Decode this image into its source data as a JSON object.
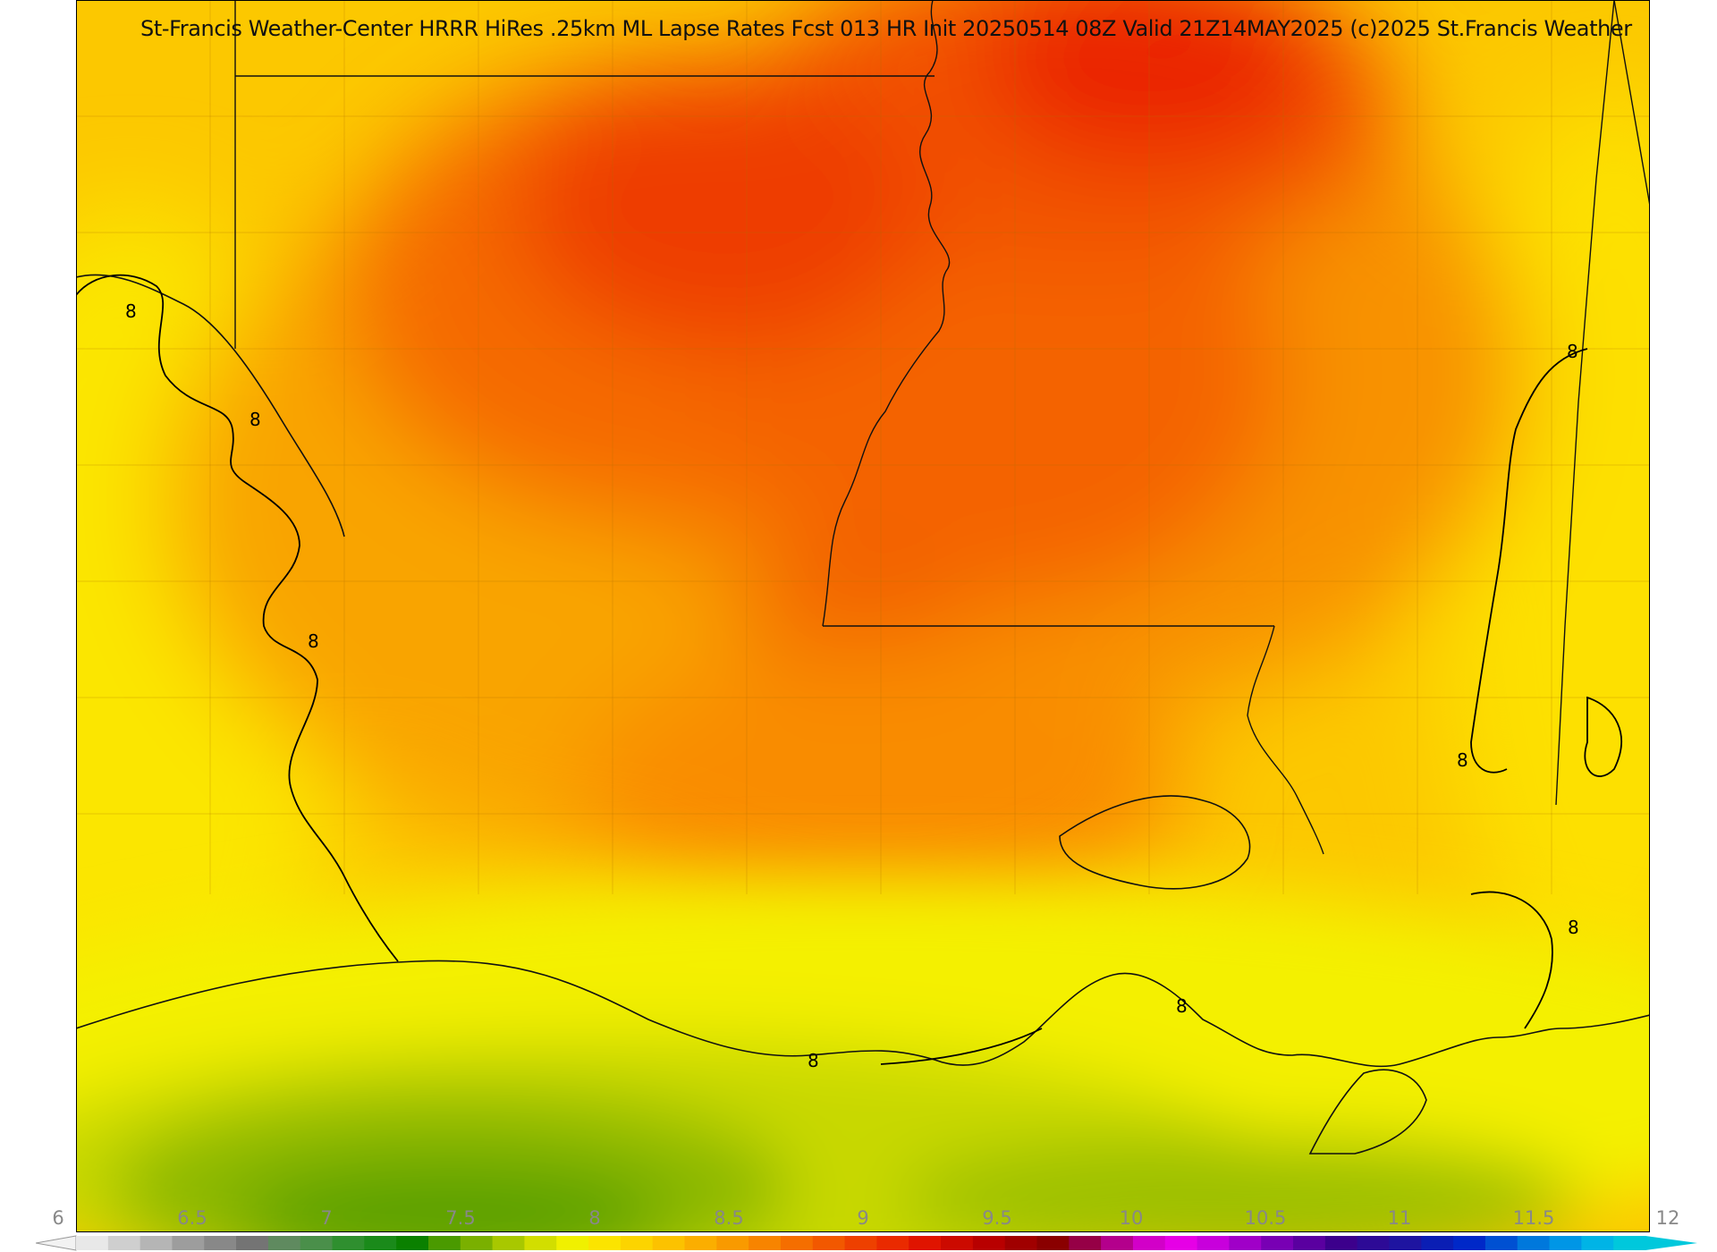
{
  "title": "St-Francis Weather-Center HRRR HiRes .25km ML Lapse Rates  Fcst 013 HR Init 20250514 08Z  Valid 21Z14MAY2025    (c)2025 St.Francis Weather",
  "contour_value_label": "8",
  "colorbar": {
    "tick_labels": [
      "6",
      "6.5",
      "7",
      "7.5",
      "8",
      "8.5",
      "9",
      "9.5",
      "10",
      "10.5",
      "11",
      "11.5",
      "12"
    ],
    "min": 6,
    "max": 12,
    "colors": [
      "#e8e8e8",
      "#cfcfcf",
      "#b5b5b5",
      "#9d9d9d",
      "#888888",
      "#747474",
      "#5f8a5f",
      "#4a8f4a",
      "#2f8f2f",
      "#1a8a1a",
      "#0a8000",
      "#4a9a00",
      "#7ab000",
      "#a8c800",
      "#d2de00",
      "#f0f000",
      "#fbe400",
      "#fcd400",
      "#fcc200",
      "#fbae00",
      "#f99a00",
      "#f78400",
      "#f56e00",
      "#f25800",
      "#ee4000",
      "#ea2a00",
      "#e01400",
      "#cc0a00",
      "#b80000",
      "#a00000",
      "#8a0000",
      "#960046",
      "#b4008c",
      "#d200c8",
      "#e600e6",
      "#c800dc",
      "#a000c8",
      "#7800b4",
      "#5a00a0",
      "#3c008c",
      "#2d0a96",
      "#1e14a0",
      "#0a1eb4",
      "#0028c8",
      "#0050d2",
      "#0078dc",
      "#0096e6",
      "#00b4e6",
      "#00c8dc"
    ]
  }
}
